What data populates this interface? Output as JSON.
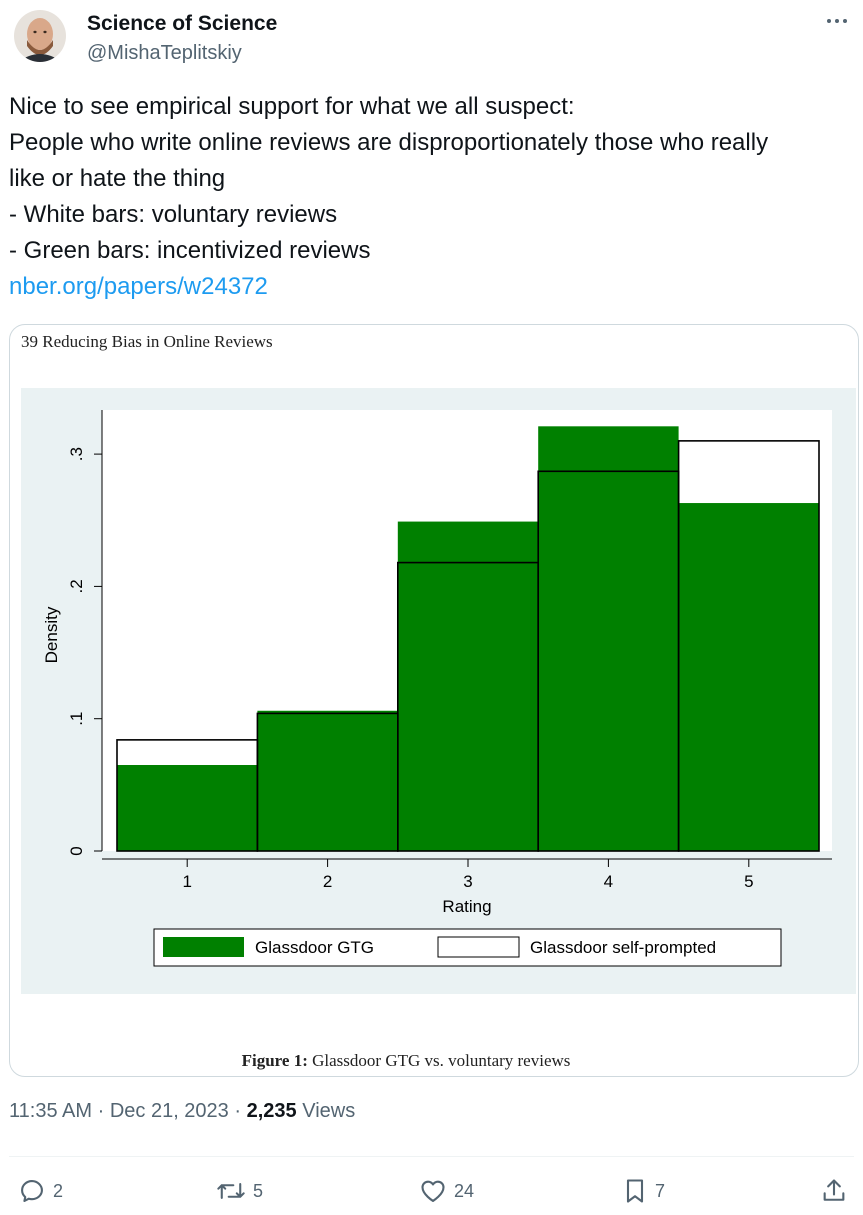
{
  "tweet": {
    "author_name": "Science of Science",
    "author_handle": "@MishaTeplitskiy",
    "text_lines": [
      "Nice to see empirical support for what we all suspect:",
      "People who write online reviews are disproportionately those who really",
      "like or hate the thing",
      "- White bars: voluntary reviews",
      "- Green bars: incentivized reviews"
    ],
    "link": "nber.org/papers/w24372",
    "time": "11:35 AM",
    "date": "Dec 21, 2023",
    "views_count": "2,235",
    "views_label": "Views",
    "separator": "·"
  },
  "actions": {
    "replies": "2",
    "reposts": "5",
    "likes": "24",
    "bookmarks": "7"
  },
  "figure": {
    "page_header": "39  Reducing Bias in Online Reviews",
    "caption_bold": "Figure 1:",
    "caption_rest": " Glassdoor GTG vs. voluntary reviews"
  },
  "chart_data": {
    "type": "bar",
    "categories": [
      "1",
      "2",
      "3",
      "4",
      "5"
    ],
    "xlabel": "Rating",
    "ylabel": "Density",
    "ylim": [
      0,
      0.33
    ],
    "yticks": [
      0,
      0.1,
      0.2,
      0.3
    ],
    "ytick_labels": [
      "0",
      ".1",
      ".2",
      ".3"
    ],
    "legend_position": "bottom",
    "grid": false,
    "series": [
      {
        "name": "Glassdoor GTG",
        "values": [
          0.065,
          0.106,
          0.249,
          0.321,
          0.263
        ],
        "color": "#008000"
      },
      {
        "name": "Glassdoor self-prompted",
        "values": [
          0.084,
          0.104,
          0.218,
          0.287,
          0.31
        ],
        "color": "#ffffff"
      }
    ],
    "plot_region_color": "#eaf2f3"
  },
  "icons": {
    "more": "more-icon",
    "reply": "reply-icon",
    "repost": "repost-icon",
    "like": "heart-icon",
    "bookmark": "bookmark-icon",
    "share": "share-icon"
  }
}
